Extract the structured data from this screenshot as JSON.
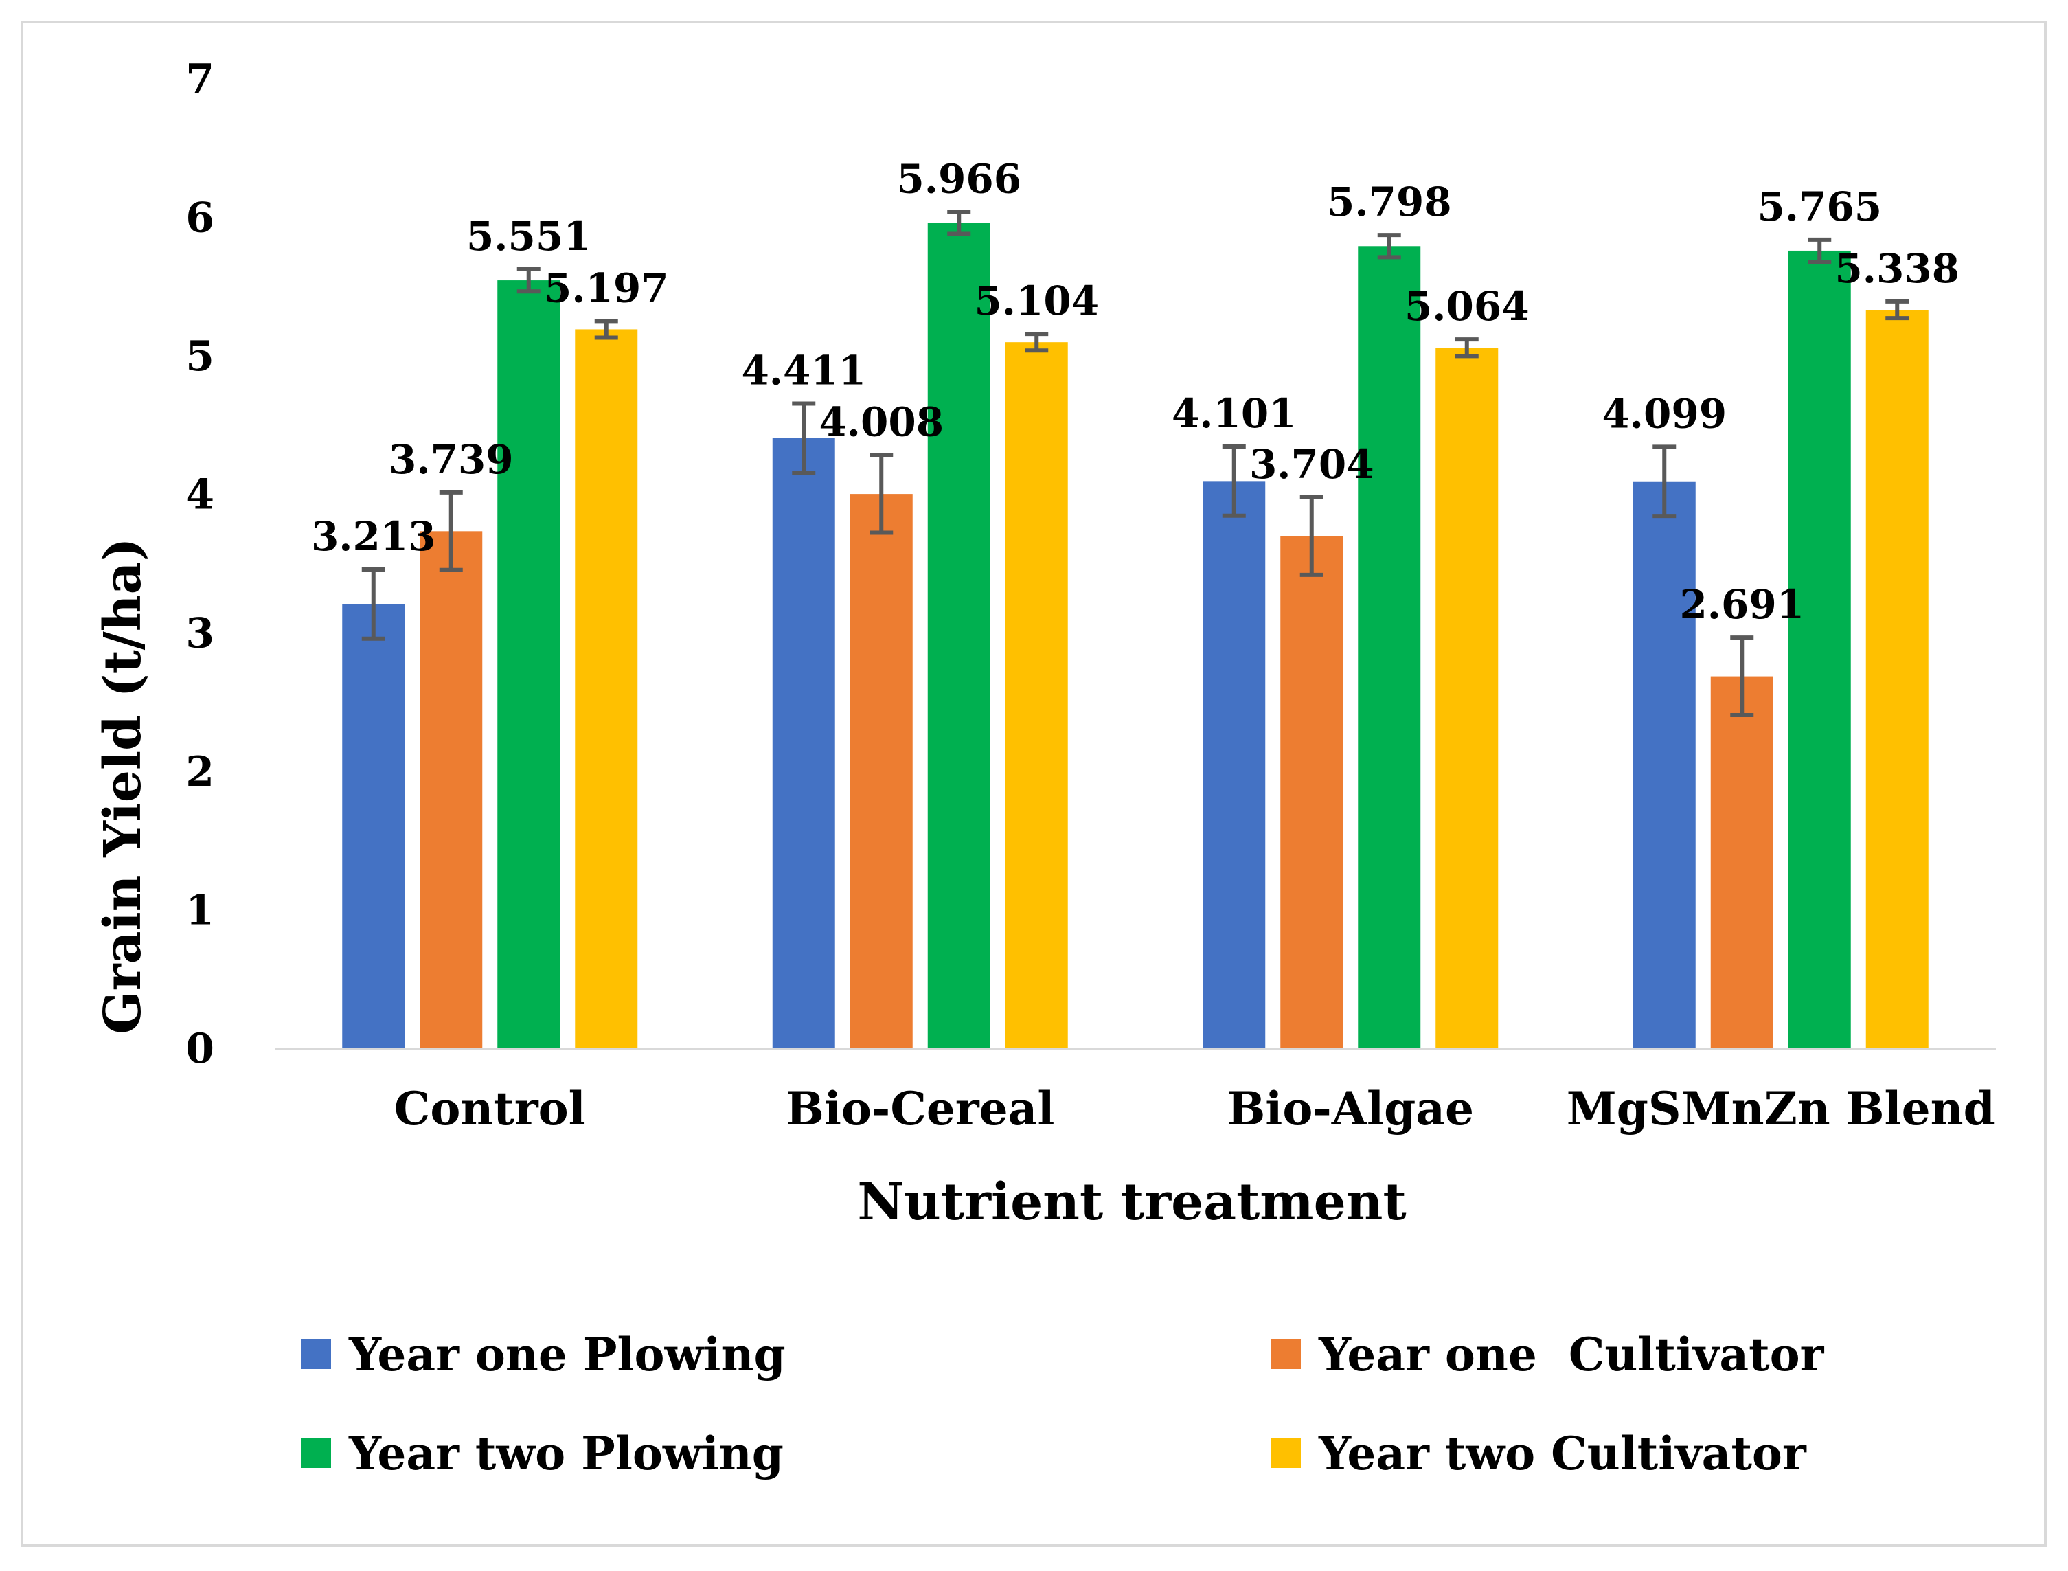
{
  "chart_data": {
    "type": "bar",
    "title": "",
    "xlabel": "Nutrient treatment",
    "ylabel": "Grain Yield (t/ha)",
    "ylim": [
      0,
      7
    ],
    "yticks": [
      0,
      1,
      2,
      3,
      4,
      5,
      6,
      7
    ],
    "ytick_labels": [
      "0",
      "1",
      "2",
      "3",
      "4",
      "5",
      "6",
      "7"
    ],
    "grid": false,
    "legend_position": "bottom",
    "categories": [
      "Control",
      "Bio-Cereal",
      "Bio-Algae",
      "MgSMnZn Blend"
    ],
    "series": [
      {
        "name": "Year one Plowing",
        "color": "#4472C4",
        "values": [
          3.213,
          4.411,
          4.101,
          4.099
        ],
        "labels": [
          "3.213",
          "4.411",
          "4.101",
          "4.099"
        ],
        "errors": [
          0.25,
          0.25,
          0.25,
          0.25
        ]
      },
      {
        "name": "Year one  Cultivator",
        "color": "#ED7D31",
        "values": [
          3.739,
          4.008,
          3.704,
          2.691
        ],
        "labels": [
          "3.739",
          "4.008",
          "3.704",
          "2.691"
        ],
        "errors": [
          0.28,
          0.28,
          0.28,
          0.28
        ]
      },
      {
        "name": "Year two Plowing",
        "color": "#00B050",
        "values": [
          5.551,
          5.966,
          5.798,
          5.765
        ],
        "labels": [
          "5.551",
          "5.966",
          "5.798",
          "5.765"
        ],
        "errors": [
          0.08,
          0.08,
          0.08,
          0.08
        ]
      },
      {
        "name": "Year two Cultivator",
        "color": "#FFC000",
        "values": [
          5.197,
          5.104,
          5.064,
          5.338
        ],
        "labels": [
          "5.197",
          "5.104",
          "5.064",
          "5.338"
        ],
        "errors": [
          0.06,
          0.06,
          0.06,
          0.06
        ]
      }
    ],
    "axis_color": "#d9d9d9",
    "error_bar_color": "#595959"
  }
}
